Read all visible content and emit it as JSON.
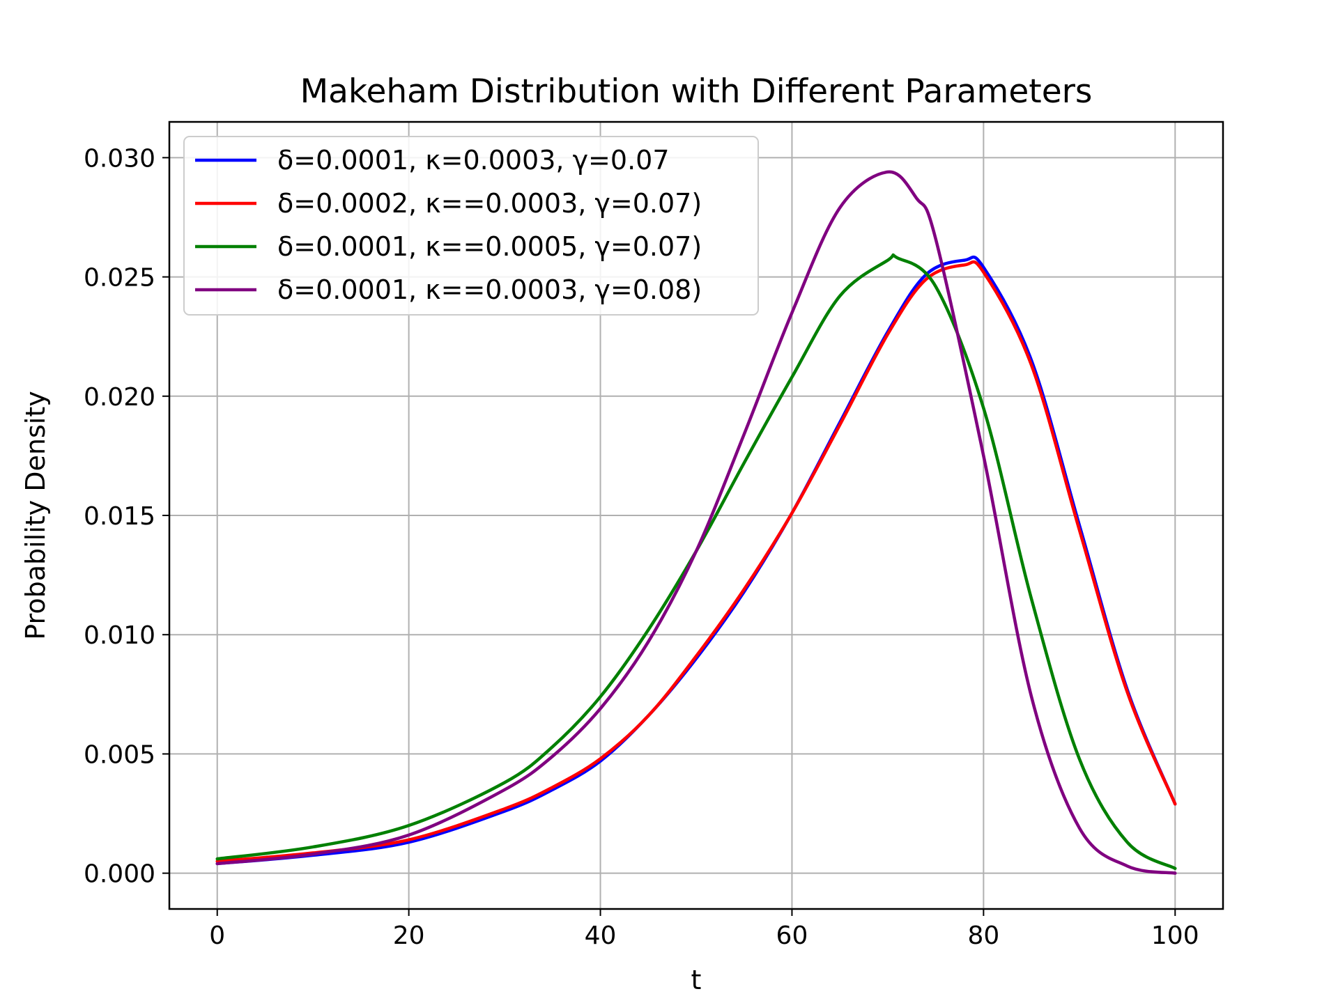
{
  "chart_data": {
    "type": "line",
    "title": "Makeham Distribution with Different Parameters",
    "xlabel": "t",
    "ylabel": "Probability Density",
    "xlim": [
      -5,
      105
    ],
    "ylim": [
      -0.0015,
      0.0315
    ],
    "xticks": [
      0,
      20,
      40,
      60,
      80,
      100
    ],
    "xtick_labels": [
      "0",
      "20",
      "40",
      "60",
      "80",
      "100"
    ],
    "yticks": [
      0,
      0.005,
      0.01,
      0.015,
      0.02,
      0.025,
      0.03
    ],
    "ytick_labels": [
      "0.000",
      "0.005",
      "0.010",
      "0.015",
      "0.020",
      "0.025",
      "0.030"
    ],
    "grid": true,
    "legend_position": "upper-left",
    "series": [
      {
        "name": "δ=0.0001, κ=0.0003, γ=0.07",
        "color": "#0000ff",
        "x": [
          0,
          10,
          20,
          30,
          35,
          40,
          45,
          50,
          55,
          60,
          65,
          70,
          74,
          78,
          80,
          85,
          90,
          95,
          100
        ],
        "y": [
          0.0004,
          0.00075,
          0.0013,
          0.0026,
          0.0035,
          0.0047,
          0.0066,
          0.009,
          0.0118,
          0.0151,
          0.0189,
          0.0227,
          0.0251,
          0.0257,
          0.0254,
          0.0215,
          0.0146,
          0.0077,
          0.0029
        ]
      },
      {
        "name": "δ=0.0002, κ==0.0003, γ=0.07)",
        "color": "#ff0000",
        "x": [
          0,
          10,
          20,
          30,
          35,
          40,
          45,
          50,
          55,
          60,
          65,
          70,
          74,
          78,
          80,
          85,
          90,
          95,
          100
        ],
        "y": [
          0.0005,
          0.00085,
          0.0014,
          0.0027,
          0.0036,
          0.0048,
          0.0066,
          0.0091,
          0.0119,
          0.0151,
          0.0188,
          0.0226,
          0.0249,
          0.0255,
          0.0252,
          0.0213,
          0.0144,
          0.0076,
          0.0029
        ]
      },
      {
        "name": "δ=0.0001, κ==0.0005, γ=0.07)",
        "color": "#008000",
        "x": [
          0,
          10,
          20,
          30,
          35,
          40,
          45,
          50,
          55,
          60,
          65,
          70,
          71,
          75,
          80,
          85,
          90,
          95,
          100
        ],
        "y": [
          0.0006,
          0.0011,
          0.002,
          0.0038,
          0.0053,
          0.0074,
          0.0102,
          0.0135,
          0.0172,
          0.0208,
          0.0242,
          0.0257,
          0.0258,
          0.0246,
          0.0195,
          0.0115,
          0.0048,
          0.0013,
          0.0002
        ]
      },
      {
        "name": "δ=0.0001, κ==0.0003, γ=0.08)",
        "color": "#800080",
        "x": [
          0,
          10,
          20,
          30,
          35,
          40,
          45,
          50,
          55,
          60,
          65,
          70,
          73,
          75,
          80,
          85,
          90,
          95,
          100
        ],
        "y": [
          0.0004,
          0.0008,
          0.0016,
          0.0035,
          0.0049,
          0.0069,
          0.0097,
          0.0135,
          0.0184,
          0.0235,
          0.0279,
          0.0294,
          0.0283,
          0.0266,
          0.0175,
          0.0074,
          0.0019,
          0.0003,
          0.0
        ]
      }
    ]
  }
}
